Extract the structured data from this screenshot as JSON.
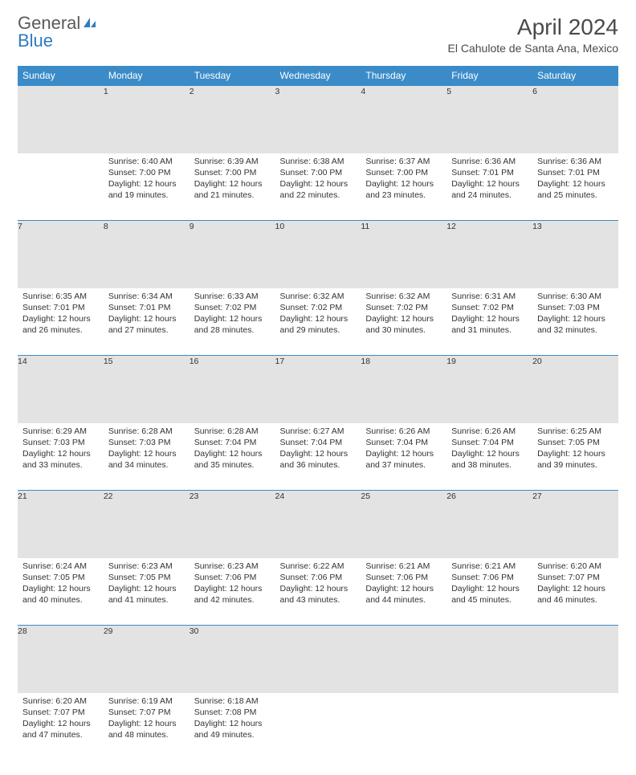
{
  "logo": {
    "word1": "General",
    "word2": "Blue"
  },
  "title": "April 2024",
  "subtitle": "El Cahulote de Santa Ana, Mexico",
  "colors": {
    "header_bg": "#3b8bc8",
    "header_fg": "#ffffff",
    "daynum_bg": "#e3e3e3",
    "border": "#3b8bc8",
    "text": "#333333",
    "title_fg": "#4a4a4a",
    "logo_gray": "#5a5a5a",
    "logo_blue": "#2d7cc0"
  },
  "weekdays": [
    "Sunday",
    "Monday",
    "Tuesday",
    "Wednesday",
    "Thursday",
    "Friday",
    "Saturday"
  ],
  "weeks": [
    [
      null,
      {
        "n": "1",
        "sr": "Sunrise: 6:40 AM",
        "ss": "Sunset: 7:00 PM",
        "dl": "Daylight: 12 hours and 19 minutes."
      },
      {
        "n": "2",
        "sr": "Sunrise: 6:39 AM",
        "ss": "Sunset: 7:00 PM",
        "dl": "Daylight: 12 hours and 21 minutes."
      },
      {
        "n": "3",
        "sr": "Sunrise: 6:38 AM",
        "ss": "Sunset: 7:00 PM",
        "dl": "Daylight: 12 hours and 22 minutes."
      },
      {
        "n": "4",
        "sr": "Sunrise: 6:37 AM",
        "ss": "Sunset: 7:00 PM",
        "dl": "Daylight: 12 hours and 23 minutes."
      },
      {
        "n": "5",
        "sr": "Sunrise: 6:36 AM",
        "ss": "Sunset: 7:01 PM",
        "dl": "Daylight: 12 hours and 24 minutes."
      },
      {
        "n": "6",
        "sr": "Sunrise: 6:36 AM",
        "ss": "Sunset: 7:01 PM",
        "dl": "Daylight: 12 hours and 25 minutes."
      }
    ],
    [
      {
        "n": "7",
        "sr": "Sunrise: 6:35 AM",
        "ss": "Sunset: 7:01 PM",
        "dl": "Daylight: 12 hours and 26 minutes."
      },
      {
        "n": "8",
        "sr": "Sunrise: 6:34 AM",
        "ss": "Sunset: 7:01 PM",
        "dl": "Daylight: 12 hours and 27 minutes."
      },
      {
        "n": "9",
        "sr": "Sunrise: 6:33 AM",
        "ss": "Sunset: 7:02 PM",
        "dl": "Daylight: 12 hours and 28 minutes."
      },
      {
        "n": "10",
        "sr": "Sunrise: 6:32 AM",
        "ss": "Sunset: 7:02 PM",
        "dl": "Daylight: 12 hours and 29 minutes."
      },
      {
        "n": "11",
        "sr": "Sunrise: 6:32 AM",
        "ss": "Sunset: 7:02 PM",
        "dl": "Daylight: 12 hours and 30 minutes."
      },
      {
        "n": "12",
        "sr": "Sunrise: 6:31 AM",
        "ss": "Sunset: 7:02 PM",
        "dl": "Daylight: 12 hours and 31 minutes."
      },
      {
        "n": "13",
        "sr": "Sunrise: 6:30 AM",
        "ss": "Sunset: 7:03 PM",
        "dl": "Daylight: 12 hours and 32 minutes."
      }
    ],
    [
      {
        "n": "14",
        "sr": "Sunrise: 6:29 AM",
        "ss": "Sunset: 7:03 PM",
        "dl": "Daylight: 12 hours and 33 minutes."
      },
      {
        "n": "15",
        "sr": "Sunrise: 6:28 AM",
        "ss": "Sunset: 7:03 PM",
        "dl": "Daylight: 12 hours and 34 minutes."
      },
      {
        "n": "16",
        "sr": "Sunrise: 6:28 AM",
        "ss": "Sunset: 7:04 PM",
        "dl": "Daylight: 12 hours and 35 minutes."
      },
      {
        "n": "17",
        "sr": "Sunrise: 6:27 AM",
        "ss": "Sunset: 7:04 PM",
        "dl": "Daylight: 12 hours and 36 minutes."
      },
      {
        "n": "18",
        "sr": "Sunrise: 6:26 AM",
        "ss": "Sunset: 7:04 PM",
        "dl": "Daylight: 12 hours and 37 minutes."
      },
      {
        "n": "19",
        "sr": "Sunrise: 6:26 AM",
        "ss": "Sunset: 7:04 PM",
        "dl": "Daylight: 12 hours and 38 minutes."
      },
      {
        "n": "20",
        "sr": "Sunrise: 6:25 AM",
        "ss": "Sunset: 7:05 PM",
        "dl": "Daylight: 12 hours and 39 minutes."
      }
    ],
    [
      {
        "n": "21",
        "sr": "Sunrise: 6:24 AM",
        "ss": "Sunset: 7:05 PM",
        "dl": "Daylight: 12 hours and 40 minutes."
      },
      {
        "n": "22",
        "sr": "Sunrise: 6:23 AM",
        "ss": "Sunset: 7:05 PM",
        "dl": "Daylight: 12 hours and 41 minutes."
      },
      {
        "n": "23",
        "sr": "Sunrise: 6:23 AM",
        "ss": "Sunset: 7:06 PM",
        "dl": "Daylight: 12 hours and 42 minutes."
      },
      {
        "n": "24",
        "sr": "Sunrise: 6:22 AM",
        "ss": "Sunset: 7:06 PM",
        "dl": "Daylight: 12 hours and 43 minutes."
      },
      {
        "n": "25",
        "sr": "Sunrise: 6:21 AM",
        "ss": "Sunset: 7:06 PM",
        "dl": "Daylight: 12 hours and 44 minutes."
      },
      {
        "n": "26",
        "sr": "Sunrise: 6:21 AM",
        "ss": "Sunset: 7:06 PM",
        "dl": "Daylight: 12 hours and 45 minutes."
      },
      {
        "n": "27",
        "sr": "Sunrise: 6:20 AM",
        "ss": "Sunset: 7:07 PM",
        "dl": "Daylight: 12 hours and 46 minutes."
      }
    ],
    [
      {
        "n": "28",
        "sr": "Sunrise: 6:20 AM",
        "ss": "Sunset: 7:07 PM",
        "dl": "Daylight: 12 hours and 47 minutes."
      },
      {
        "n": "29",
        "sr": "Sunrise: 6:19 AM",
        "ss": "Sunset: 7:07 PM",
        "dl": "Daylight: 12 hours and 48 minutes."
      },
      {
        "n": "30",
        "sr": "Sunrise: 6:18 AM",
        "ss": "Sunset: 7:08 PM",
        "dl": "Daylight: 12 hours and 49 minutes."
      },
      null,
      null,
      null,
      null
    ]
  ]
}
